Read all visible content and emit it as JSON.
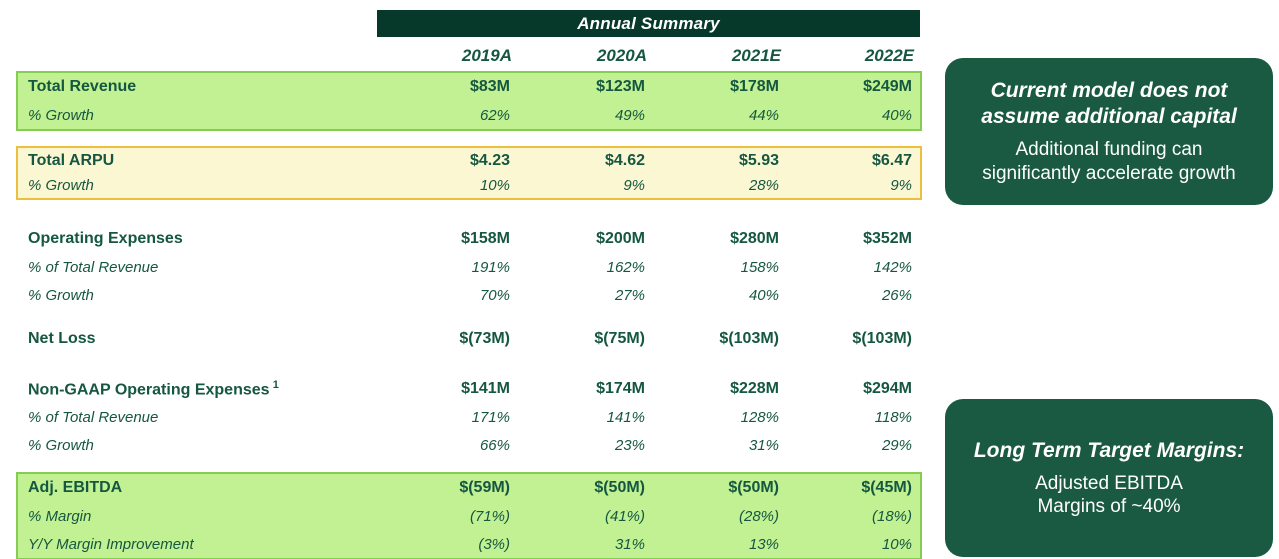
{
  "table": {
    "title": "Annual Summary",
    "columns": [
      "2019A",
      "2020A",
      "2021E",
      "2022E"
    ],
    "sections": {
      "revenue": {
        "rows": [
          {
            "label": "Total Revenue",
            "values": [
              "$83M",
              "$123M",
              "$178M",
              "$249M"
            ]
          },
          {
            "label": "% Growth",
            "values": [
              "62%",
              "49%",
              "44%",
              "40%"
            ]
          }
        ]
      },
      "arpu": {
        "rows": [
          {
            "label": "Total ARPU",
            "values": [
              "$4.23",
              "$4.62",
              "$5.93",
              "$6.47"
            ]
          },
          {
            "label": "% Growth",
            "values": [
              "10%",
              "9%",
              "28%",
              "9%"
            ]
          }
        ]
      },
      "opex": {
        "rows": [
          {
            "label": "Operating Expenses",
            "values": [
              "$158M",
              "$200M",
              "$280M",
              "$352M"
            ]
          },
          {
            "label": "% of Total Revenue",
            "values": [
              "191%",
              "162%",
              "158%",
              "142%"
            ]
          },
          {
            "label": "% Growth",
            "values": [
              "70%",
              "27%",
              "40%",
              "26%"
            ]
          }
        ]
      },
      "net_loss": {
        "rows": [
          {
            "label": "Net Loss",
            "values": [
              "$(73M)",
              "$(75M)",
              "$(103M)",
              "$(103M)"
            ]
          }
        ]
      },
      "non_gaap": {
        "rows": [
          {
            "label": "Non-GAAP Operating Expenses",
            "superscript": "1",
            "values": [
              "$141M",
              "$174M",
              "$228M",
              "$294M"
            ]
          },
          {
            "label": "% of Total Revenue",
            "values": [
              "171%",
              "141%",
              "128%",
              "118%"
            ]
          },
          {
            "label": "% Growth",
            "values": [
              "66%",
              "23%",
              "31%",
              "29%"
            ]
          }
        ]
      },
      "ebitda": {
        "rows": [
          {
            "label": "Adj. EBITDA",
            "values": [
              "$(59M)",
              "$(50M)",
              "$(50M)",
              "$(45M)"
            ]
          },
          {
            "label": "% Margin",
            "values": [
              "(71%)",
              "(41%)",
              "(28%)",
              "(18%)"
            ]
          },
          {
            "label": "Y/Y Margin Improvement",
            "values": [
              "(3%)",
              "31%",
              "13%",
              "10%"
            ]
          }
        ]
      }
    }
  },
  "callouts": {
    "funding": {
      "title_line1": "Current model does not",
      "title_line2": "assume additional capital",
      "body_line1": "Additional funding can",
      "body_line2": "significantly accelerate growth"
    },
    "margins": {
      "title": "Long Term Target Margins:",
      "body_line1": "Adjusted EBITDA",
      "body_line2": "Margins of ~40%"
    }
  },
  "colors": {
    "header_bar_bg": "#07392b",
    "callout_bg": "#1a5a42",
    "text_green": "#155740",
    "row_green_bg": "#c1f192",
    "row_green_border": "#85cc52",
    "row_yellow_bg": "#fcf7d3",
    "row_yellow_border": "#edbf3f"
  }
}
